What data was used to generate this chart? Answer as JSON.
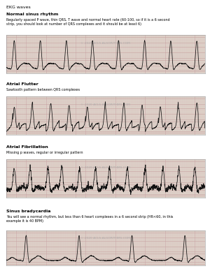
{
  "title": "EKG waves",
  "sections": [
    {
      "label": "Normal sinus rhythm",
      "description": "Regularly spaced P wave, thin QRS, T wave and normal heart rate (60-100, so if it is a 6 second\nstrip, you should look at number of QRS complexes and it should be at least 6)",
      "rhythm": "normal"
    },
    {
      "label": "Atrial Flutter",
      "description": "Sawtooth pattern between QRS complexes",
      "rhythm": "flutter"
    },
    {
      "label": "Atrial Fibrillation",
      "description": "Missing p waves, regular or irregular pattern",
      "rhythm": "afib"
    },
    {
      "label": "Sinus bradycardia",
      "description": "You will see a normal rhythm, but less than 6 heart complexes in a 6 second strip (HR<60, in this\nexample it is 40 BPM)",
      "rhythm": "brady"
    }
  ],
  "bg_color": "#ffffff",
  "text_color": "#000000",
  "ecg_bg": "#ddd8cc",
  "ecg_grid_major": "#c8a0a0",
  "ecg_grid_minor": "#dcc0c0",
  "ecg_line_color": "#111111",
  "watermark_color": "#aaaaaa",
  "label_fontsize": 4.5,
  "desc_fontsize": 3.5,
  "title_fontsize": 4.5
}
